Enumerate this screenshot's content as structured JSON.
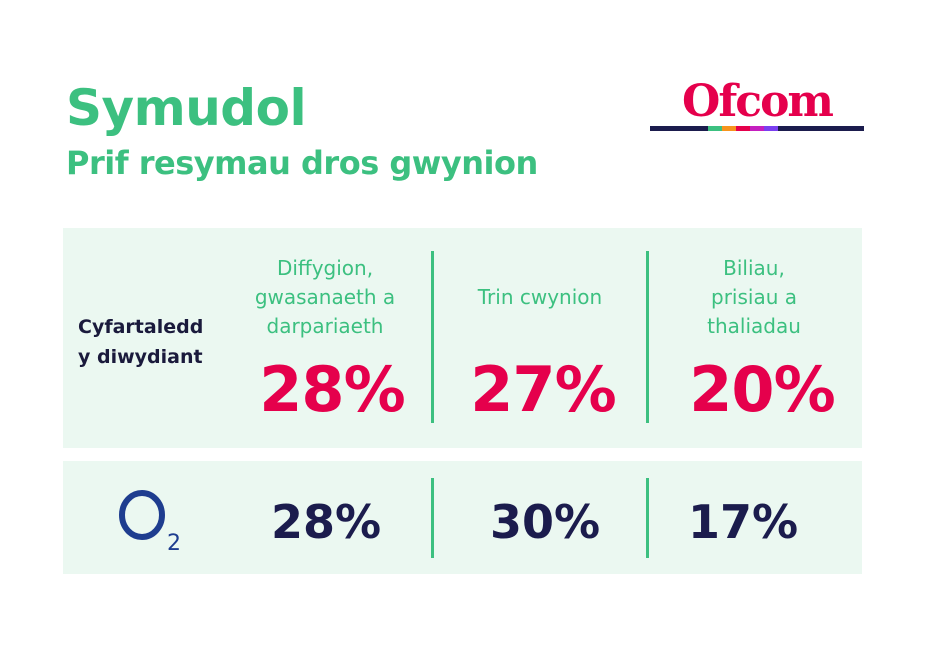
{
  "header": {
    "title": "Symudol",
    "subtitle": "Prif resymau dros gwynion",
    "logo_text": "Ofcom"
  },
  "colors": {
    "accent_green": "#3cc080",
    "highlight_pink": "#e5004c",
    "navy": "#1b1c4d",
    "panel_bg": "#ebf8f1",
    "logo_bar": [
      "#1b1c4d",
      "#3cc080",
      "#f7941d",
      "#e5004c",
      "#c51fbf",
      "#7a3ff0",
      "#1b1c4d"
    ]
  },
  "industry_average": {
    "label_line1": "Cyfartaledd",
    "label_line2": "y diwydiant",
    "columns": [
      {
        "heading_line1": "Diffygion,",
        "heading_line2": "gwasanaeth a",
        "heading_line3": "darpariaeth",
        "value": "28%"
      },
      {
        "heading_line1": "Trin cwynion",
        "heading_line2": "",
        "heading_line3": "",
        "value": "27%"
      },
      {
        "heading_line1": "Biliau,",
        "heading_line2": "prisiau a",
        "heading_line3": "thaliadau",
        "value": "20%"
      }
    ]
  },
  "provider": {
    "logo_letter": "O",
    "logo_sub": "2",
    "values": [
      "28%",
      "30%",
      "17%"
    ]
  }
}
